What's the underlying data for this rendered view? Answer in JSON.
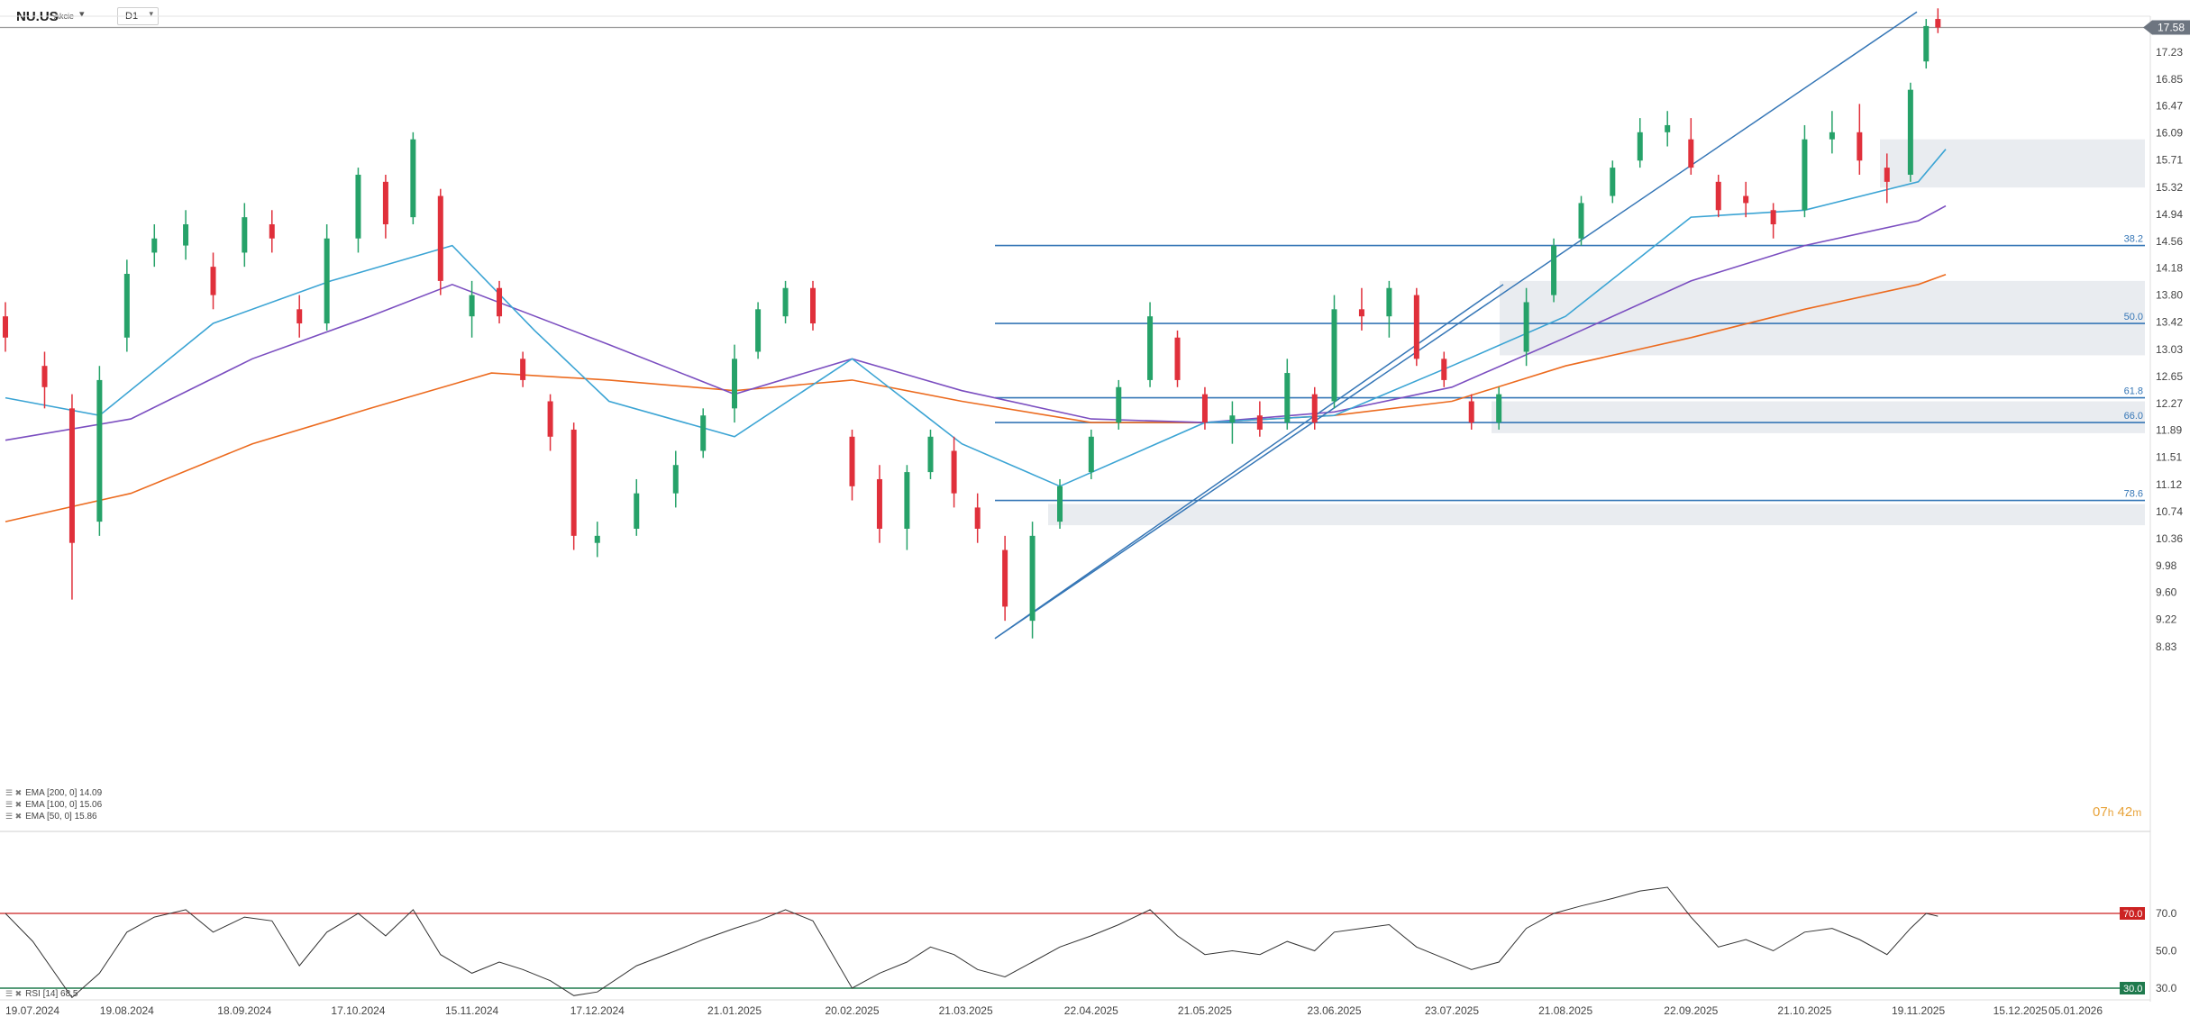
{
  "header": {
    "symbol": "NU.US",
    "instrument_type": "Akcie",
    "timeframe": "D1"
  },
  "price_axis_labels": [
    "17.23",
    "16.85",
    "16.47",
    "16.09",
    "15.71",
    "15.32",
    "14.94",
    "14.56",
    "14.18",
    "13.80",
    "13.42",
    "13.03",
    "12.65",
    "12.27",
    "11.89",
    "11.51",
    "11.12",
    "10.74",
    "10.36",
    "9.98",
    "9.60",
    "9.22",
    "8.83"
  ],
  "current_price": "17.58",
  "rsi_axis_labels": [
    "70.0",
    "50.0",
    "30.0"
  ],
  "rsi_marks": {
    "upper": "70.0",
    "lower": "30.0"
  },
  "date_labels": [
    "19.07.2024",
    "19.08.2024",
    "18.09.2024",
    "17.10.2024",
    "15.11.2024",
    "17.12.2024",
    "21.01.2025",
    "20.02.2025",
    "21.03.2025",
    "22.04.2025",
    "21.05.2025",
    "23.06.2025",
    "23.07.2025",
    "21.08.2025",
    "22.09.2025",
    "21.10.2025",
    "19.11.2025",
    "15.12.2025",
    "05.01.2026"
  ],
  "fib_levels": [
    {
      "label": "38.2",
      "price": 14.5
    },
    {
      "label": "50.0",
      "price": 13.4
    },
    {
      "label": "61.8",
      "price": 12.35
    },
    {
      "label": "66.0",
      "price": 12.0
    },
    {
      "label": "78.6",
      "price": 10.9
    }
  ],
  "legend": {
    "ema200": "EMA [200, 0] 14.09",
    "ema100": "EMA [100, 0] 15.06",
    "ema50": "EMA [50, 0] 15.86",
    "rsi": "RSI [14] 68.5"
  },
  "countdown": {
    "hours": "07",
    "h": "h",
    "minutes": "42",
    "m": "m"
  },
  "colors": {
    "up": "#26a269",
    "down": "#e0303b",
    "ema50": "#3ba4d4",
    "ema100": "#7b4ec0",
    "ema200": "#ec6b1f",
    "fib": "#3576b6",
    "zone": "#e9ecf0",
    "rsi_line": "#333333",
    "rsi_upper": "#cc2222",
    "rsi_lower": "#1f7a4d",
    "countdown": "#e8a33a"
  },
  "chart_data": {
    "type": "candlestick",
    "title": "NU.US Akcie D1",
    "y_range": [
      8.83,
      17.8
    ],
    "x_axis": "date",
    "candles": [
      {
        "date": "2024-07-19",
        "o": 13.5,
        "h": 13.7,
        "l": 13.0,
        "c": 13.2
      },
      {
        "date": "2024-07-29",
        "o": 12.8,
        "h": 13.0,
        "l": 12.2,
        "c": 12.5
      },
      {
        "date": "2024-08-05",
        "o": 12.2,
        "h": 12.4,
        "l": 9.5,
        "c": 10.3
      },
      {
        "date": "2024-08-12",
        "o": 10.6,
        "h": 12.8,
        "l": 10.4,
        "c": 12.6
      },
      {
        "date": "2024-08-19",
        "o": 13.2,
        "h": 14.3,
        "l": 13.0,
        "c": 14.1
      },
      {
        "date": "2024-08-26",
        "o": 14.4,
        "h": 14.8,
        "l": 14.2,
        "c": 14.6
      },
      {
        "date": "2024-09-03",
        "o": 14.5,
        "h": 15.0,
        "l": 14.3,
        "c": 14.8
      },
      {
        "date": "2024-09-10",
        "o": 14.2,
        "h": 14.4,
        "l": 13.6,
        "c": 13.8
      },
      {
        "date": "2024-09-18",
        "o": 14.4,
        "h": 15.1,
        "l": 14.2,
        "c": 14.9
      },
      {
        "date": "2024-09-25",
        "o": 14.8,
        "h": 15.0,
        "l": 14.4,
        "c": 14.6
      },
      {
        "date": "2024-10-02",
        "o": 13.6,
        "h": 13.8,
        "l": 13.2,
        "c": 13.4
      },
      {
        "date": "2024-10-09",
        "o": 13.4,
        "h": 14.8,
        "l": 13.3,
        "c": 14.6
      },
      {
        "date": "2024-10-17",
        "o": 14.6,
        "h": 15.6,
        "l": 14.4,
        "c": 15.5
      },
      {
        "date": "2024-10-24",
        "o": 15.4,
        "h": 15.5,
        "l": 14.6,
        "c": 14.8
      },
      {
        "date": "2024-10-31",
        "o": 14.9,
        "h": 16.1,
        "l": 14.8,
        "c": 16.0
      },
      {
        "date": "2024-11-07",
        "o": 15.2,
        "h": 15.3,
        "l": 13.8,
        "c": 14.0
      },
      {
        "date": "2024-11-15",
        "o": 13.5,
        "h": 14.0,
        "l": 13.2,
        "c": 13.8
      },
      {
        "date": "2024-11-22",
        "o": 13.9,
        "h": 14.0,
        "l": 13.4,
        "c": 13.5
      },
      {
        "date": "2024-11-28",
        "o": 12.9,
        "h": 13.0,
        "l": 12.5,
        "c": 12.6
      },
      {
        "date": "2024-12-05",
        "o": 12.3,
        "h": 12.4,
        "l": 11.6,
        "c": 11.8
      },
      {
        "date": "2024-12-11",
        "o": 11.9,
        "h": 12.0,
        "l": 10.2,
        "c": 10.4
      },
      {
        "date": "2024-12-17",
        "o": 10.3,
        "h": 10.6,
        "l": 10.1,
        "c": 10.4
      },
      {
        "date": "2024-12-27",
        "o": 10.5,
        "h": 11.2,
        "l": 10.4,
        "c": 11.0
      },
      {
        "date": "2025-01-06",
        "o": 11.0,
        "h": 11.6,
        "l": 10.8,
        "c": 11.4
      },
      {
        "date": "2025-01-13",
        "o": 11.6,
        "h": 12.2,
        "l": 11.5,
        "c": 12.1
      },
      {
        "date": "2025-01-21",
        "o": 12.2,
        "h": 13.1,
        "l": 12.0,
        "c": 12.9
      },
      {
        "date": "2025-01-27",
        "o": 13.0,
        "h": 13.7,
        "l": 12.9,
        "c": 13.6
      },
      {
        "date": "2025-02-03",
        "o": 13.5,
        "h": 14.0,
        "l": 13.4,
        "c": 13.9
      },
      {
        "date": "2025-02-10",
        "o": 13.9,
        "h": 14.0,
        "l": 13.3,
        "c": 13.4
      },
      {
        "date": "2025-02-20",
        "o": 11.8,
        "h": 11.9,
        "l": 10.9,
        "c": 11.1
      },
      {
        "date": "2025-02-27",
        "o": 11.2,
        "h": 11.4,
        "l": 10.3,
        "c": 10.5
      },
      {
        "date": "2025-03-06",
        "o": 10.5,
        "h": 11.4,
        "l": 10.2,
        "c": 11.3
      },
      {
        "date": "2025-03-12",
        "o": 11.3,
        "h": 11.9,
        "l": 11.2,
        "c": 11.8
      },
      {
        "date": "2025-03-18",
        "o": 11.6,
        "h": 11.8,
        "l": 10.8,
        "c": 11.0
      },
      {
        "date": "2025-03-24",
        "o": 10.8,
        "h": 11.0,
        "l": 10.3,
        "c": 10.5
      },
      {
        "date": "2025-03-31",
        "o": 10.2,
        "h": 10.4,
        "l": 9.2,
        "c": 9.4
      },
      {
        "date": "2025-04-07",
        "o": 9.2,
        "h": 10.6,
        "l": 8.95,
        "c": 10.4
      },
      {
        "date": "2025-04-14",
        "o": 10.6,
        "h": 11.2,
        "l": 10.5,
        "c": 11.1
      },
      {
        "date": "2025-04-22",
        "o": 11.3,
        "h": 11.9,
        "l": 11.2,
        "c": 11.8
      },
      {
        "date": "2025-04-29",
        "o": 12.0,
        "h": 12.6,
        "l": 11.9,
        "c": 12.5
      },
      {
        "date": "2025-05-07",
        "o": 12.6,
        "h": 13.7,
        "l": 12.5,
        "c": 13.5
      },
      {
        "date": "2025-05-14",
        "o": 13.2,
        "h": 13.3,
        "l": 12.5,
        "c": 12.6
      },
      {
        "date": "2025-05-21",
        "o": 12.4,
        "h": 12.5,
        "l": 11.9,
        "c": 12.0
      },
      {
        "date": "2025-05-28",
        "o": 12.0,
        "h": 12.3,
        "l": 11.7,
        "c": 12.1
      },
      {
        "date": "2025-06-04",
        "o": 12.1,
        "h": 12.3,
        "l": 11.8,
        "c": 11.9
      },
      {
        "date": "2025-06-11",
        "o": 12.0,
        "h": 12.9,
        "l": 11.9,
        "c": 12.7
      },
      {
        "date": "2025-06-18",
        "o": 12.4,
        "h": 12.5,
        "l": 11.9,
        "c": 12.0
      },
      {
        "date": "2025-06-23",
        "o": 12.3,
        "h": 13.8,
        "l": 12.2,
        "c": 13.6
      },
      {
        "date": "2025-06-30",
        "o": 13.6,
        "h": 13.9,
        "l": 13.3,
        "c": 13.5
      },
      {
        "date": "2025-07-07",
        "o": 13.5,
        "h": 14.0,
        "l": 13.2,
        "c": 13.9
      },
      {
        "date": "2025-07-14",
        "o": 13.8,
        "h": 13.9,
        "l": 12.8,
        "c": 12.9
      },
      {
        "date": "2025-07-21",
        "o": 12.9,
        "h": 13.0,
        "l": 12.5,
        "c": 12.6
      },
      {
        "date": "2025-07-28",
        "o": 12.3,
        "h": 12.4,
        "l": 11.9,
        "c": 12.0
      },
      {
        "date": "2025-08-04",
        "o": 12.0,
        "h": 12.5,
        "l": 11.9,
        "c": 12.4
      },
      {
        "date": "2025-08-11",
        "o": 13.0,
        "h": 13.9,
        "l": 12.8,
        "c": 13.7
      },
      {
        "date": "2025-08-18",
        "o": 13.8,
        "h": 14.6,
        "l": 13.7,
        "c": 14.5
      },
      {
        "date": "2025-08-25",
        "o": 14.6,
        "h": 15.2,
        "l": 14.5,
        "c": 15.1
      },
      {
        "date": "2025-09-02",
        "o": 15.2,
        "h": 15.7,
        "l": 15.1,
        "c": 15.6
      },
      {
        "date": "2025-09-09",
        "o": 15.7,
        "h": 16.3,
        "l": 15.6,
        "c": 16.1
      },
      {
        "date": "2025-09-16",
        "o": 16.1,
        "h": 16.4,
        "l": 15.9,
        "c": 16.2
      },
      {
        "date": "2025-09-22",
        "o": 16.0,
        "h": 16.3,
        "l": 15.5,
        "c": 15.6
      },
      {
        "date": "2025-09-29",
        "o": 15.4,
        "h": 15.5,
        "l": 14.9,
        "c": 15.0
      },
      {
        "date": "2025-10-06",
        "o": 15.2,
        "h": 15.4,
        "l": 14.9,
        "c": 15.1
      },
      {
        "date": "2025-10-13",
        "o": 15.0,
        "h": 15.1,
        "l": 14.6,
        "c": 14.8
      },
      {
        "date": "2025-10-21",
        "o": 15.0,
        "h": 16.2,
        "l": 14.9,
        "c": 16.0
      },
      {
        "date": "2025-10-28",
        "o": 16.0,
        "h": 16.4,
        "l": 15.8,
        "c": 16.1
      },
      {
        "date": "2025-11-04",
        "o": 16.1,
        "h": 16.5,
        "l": 15.5,
        "c": 15.7
      },
      {
        "date": "2025-11-11",
        "o": 15.6,
        "h": 15.8,
        "l": 15.1,
        "c": 15.4
      },
      {
        "date": "2025-11-17",
        "o": 15.5,
        "h": 16.8,
        "l": 15.4,
        "c": 16.7
      },
      {
        "date": "2025-11-21",
        "o": 17.1,
        "h": 17.7,
        "l": 17.0,
        "c": 17.6
      },
      {
        "date": "2025-11-24",
        "o": 17.7,
        "h": 17.85,
        "l": 17.5,
        "c": 17.58
      }
    ],
    "ema50_last": 15.86,
    "ema100_last": 15.06,
    "ema200_last": 14.09,
    "rsi_last": 68.5,
    "rsi_range": [
      30,
      70
    ]
  }
}
